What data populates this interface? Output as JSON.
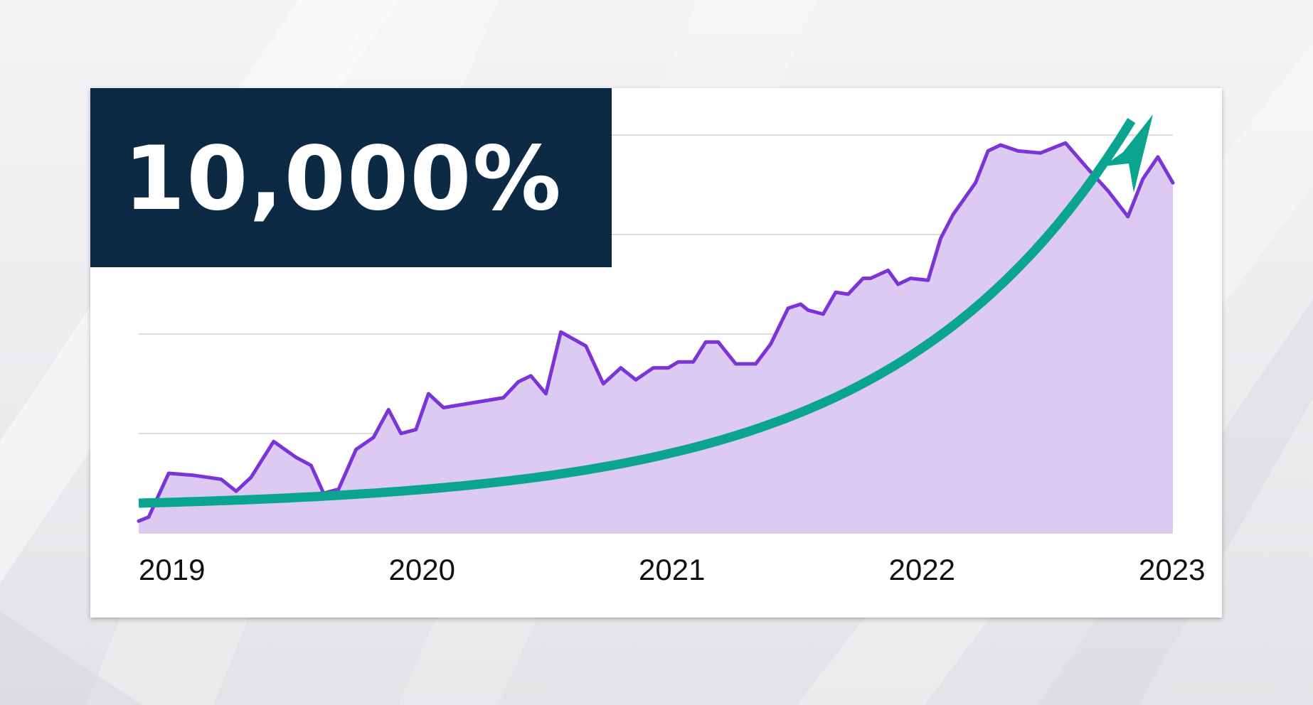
{
  "headline": {
    "text": "10,000%"
  },
  "colors": {
    "headline_bg": "#0d2a45",
    "headline_text": "#ffffff",
    "series_line": "#7b35d6",
    "series_fill": "#dccaf2",
    "trend_arrow": "#0ba58f",
    "gridline": "#cfcfd6"
  },
  "chart_data": {
    "type": "line",
    "title": "",
    "xlabel": "",
    "ylabel": "",
    "x_tick_labels": [
      "2019",
      "2020",
      "2021",
      "2022",
      "2023"
    ],
    "xlim": [
      2019,
      2023.14
    ],
    "ylim": [
      0,
      100
    ],
    "grid": true,
    "y_grid_lines": [
      0,
      25,
      50,
      75,
      100
    ],
    "series": [
      {
        "style": "line-with-filled-area",
        "x": [
          2019.0,
          2019.04,
          2019.12,
          2019.22,
          2019.33,
          2019.39,
          2019.45,
          2019.54,
          2019.63,
          2019.69,
          2019.74,
          2019.8,
          2019.87,
          2019.94,
          2020.0,
          2020.05,
          2020.11,
          2020.16,
          2020.22,
          2020.46,
          2020.52,
          2020.57,
          2020.63,
          2020.69,
          2020.79,
          2020.86,
          2020.93,
          2020.99,
          2021.06,
          2021.12,
          2021.16,
          2021.22,
          2021.27,
          2021.32,
          2021.39,
          2021.47,
          2021.53,
          2021.6,
          2021.65,
          2021.68,
          2021.74,
          2021.79,
          2021.84,
          2021.9,
          2021.93,
          2022.0,
          2022.04,
          2022.09,
          2022.16,
          2022.21,
          2022.26,
          2022.35,
          2022.4,
          2022.45,
          2022.52,
          2022.61,
          2022.71,
          2022.8,
          2022.88,
          2022.96,
          2023.02,
          2023.08,
          2023.14
        ],
        "y": [
          3,
          4,
          15,
          14.5,
          13.5,
          10.5,
          14,
          23,
          19,
          17,
          10,
          11,
          21,
          24,
          31,
          25,
          26,
          35,
          31.5,
          34,
          38,
          39.5,
          35,
          50.5,
          47,
          37.5,
          41.5,
          38.5,
          41.5,
          41.5,
          43,
          43,
          48,
          48,
          42.5,
          42.5,
          47.5,
          56.5,
          57.5,
          56,
          55,
          60.5,
          60,
          64,
          64,
          66,
          62.5,
          64,
          63.5,
          74,
          80,
          88,
          96,
          97.5,
          96,
          95.5,
          98,
          91.5,
          86,
          79.5,
          89,
          94.5,
          88
        ]
      }
    ],
    "annotations": [
      {
        "type": "trend-arrow",
        "shape": "exponential curve rising from the left edge to the top right"
      }
    ]
  }
}
